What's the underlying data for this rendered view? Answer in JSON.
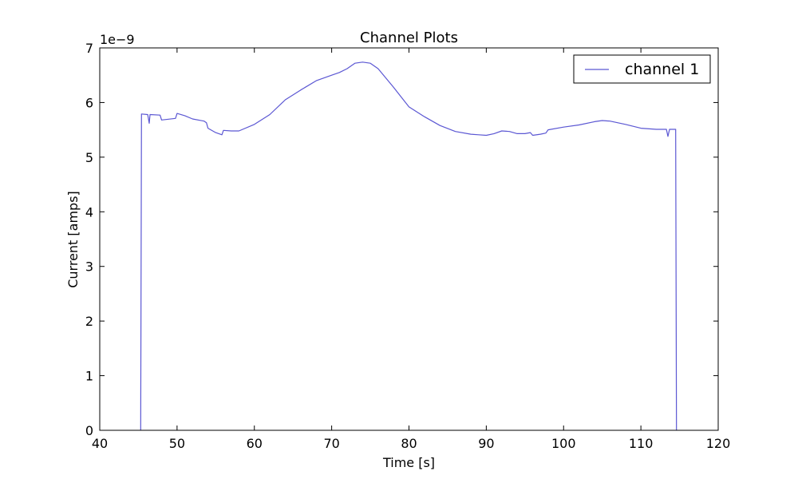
{
  "chart_data": {
    "type": "line",
    "title": "Channel Plots",
    "xlabel": "Time [s]",
    "ylabel": "Current [amps]",
    "y_scale_label": "1e−9",
    "xlim": [
      40,
      120
    ],
    "ylim": [
      0,
      7
    ],
    "x_ticks": [
      40,
      50,
      60,
      70,
      80,
      90,
      100,
      110,
      120
    ],
    "y_ticks": [
      0,
      1,
      2,
      3,
      4,
      5,
      6,
      7
    ],
    "x_tick_labels": [
      "40",
      "50",
      "60",
      "70",
      "80",
      "90",
      "100",
      "110",
      "120"
    ],
    "y_tick_labels": [
      "0",
      "1",
      "2",
      "3",
      "4",
      "5",
      "6",
      "7"
    ],
    "legend_position": "top-right",
    "grid": false,
    "series": [
      {
        "name": "channel 1",
        "color": "#5b57d3",
        "x": [
          45.3,
          45.4,
          46.2,
          46.4,
          46.5,
          47.8,
          48.0,
          49.8,
          50.0,
          51.0,
          52.0,
          53.5,
          53.8,
          54.0,
          55.0,
          55.8,
          56.0,
          57.0,
          58.0,
          60.0,
          62.0,
          64.0,
          66.0,
          68.0,
          70.0,
          71.0,
          72.0,
          73.0,
          74.0,
          75.0,
          76.0,
          78.0,
          80.0,
          82.0,
          84.0,
          86.0,
          88.0,
          89.0,
          90.0,
          91.0,
          92.0,
          93.0,
          94.0,
          95.0,
          95.7,
          96.0,
          97.0,
          97.7,
          98.0,
          100.0,
          102.0,
          104.0,
          105.0,
          106.0,
          108.0,
          110.0,
          112.0,
          113.3,
          113.5,
          113.7,
          114.5,
          114.6
        ],
        "y": [
          0.0,
          5.79,
          5.78,
          5.62,
          5.78,
          5.77,
          5.68,
          5.71,
          5.8,
          5.76,
          5.7,
          5.66,
          5.63,
          5.53,
          5.45,
          5.41,
          5.49,
          5.48,
          5.48,
          5.6,
          5.78,
          6.05,
          6.23,
          6.4,
          6.5,
          6.55,
          6.62,
          6.72,
          6.74,
          6.72,
          6.62,
          6.28,
          5.92,
          5.74,
          5.58,
          5.47,
          5.42,
          5.41,
          5.4,
          5.43,
          5.48,
          5.47,
          5.43,
          5.43,
          5.45,
          5.4,
          5.42,
          5.44,
          5.5,
          5.55,
          5.59,
          5.65,
          5.67,
          5.66,
          5.6,
          5.53,
          5.51,
          5.51,
          5.38,
          5.51,
          5.51,
          0.0
        ]
      }
    ]
  }
}
